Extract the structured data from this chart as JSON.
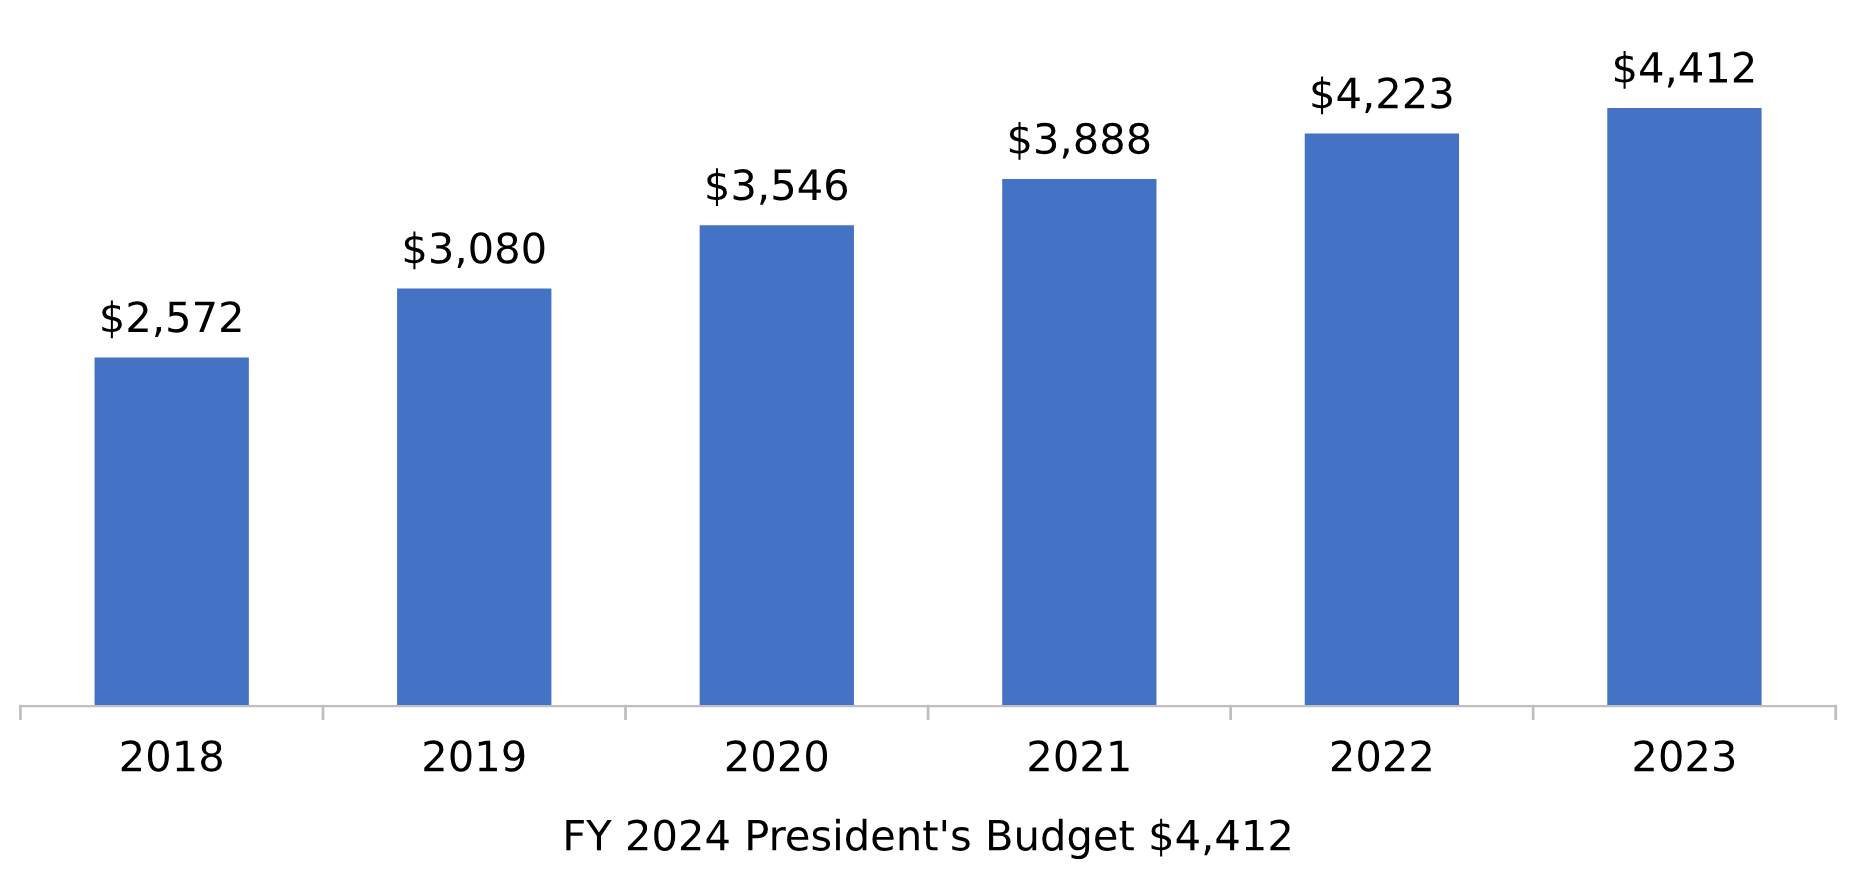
{
  "chart_data": {
    "type": "bar",
    "categories": [
      "2018",
      "2019",
      "2020",
      "2021",
      "2022",
      "2023"
    ],
    "values": [
      2572,
      3080,
      3546,
      3888,
      4223,
      4412
    ],
    "value_labels": [
      "$2,572",
      "$3,080",
      "$3,546",
      "$3,888",
      "$4,223",
      "$4,412"
    ],
    "color": "#4472c4",
    "xlabel": "FY 2024 President's Budget $4,412",
    "grid": false,
    "legend": false
  }
}
